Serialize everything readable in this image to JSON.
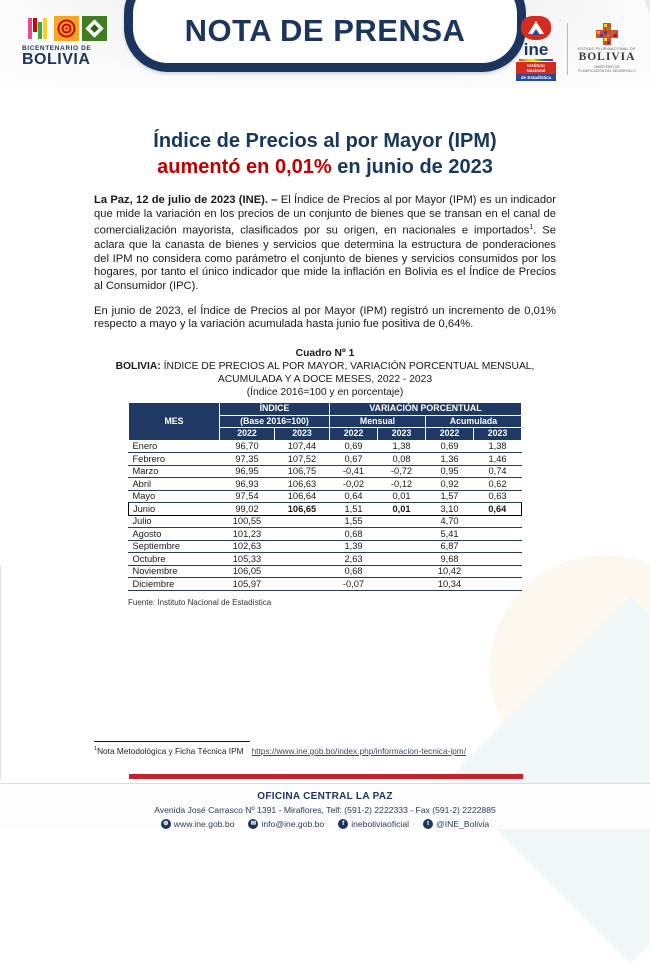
{
  "header": {
    "banner_title": "NOTA DE PRENSA",
    "bicentenario": {
      "line1": "BICENTENARIO DE",
      "line2": "BOLIVIA"
    },
    "ine_logo": {
      "word": "ine",
      "sub1": "Instituto Nacional",
      "sub2": "de Estadística"
    },
    "bolivia_logo": {
      "top": "ESTADO PLURINACIONAL DE",
      "name": "BOLIVIA",
      "sub1": "MINISTERIO DE",
      "sub2": "PLANIFICACIÓN DEL DESARROLLO"
    }
  },
  "title": {
    "line1": "Índice de Precios al por Mayor (IPM)",
    "line2_red": "aumentó en 0,01%",
    "line2_rest": " en junio de 2023"
  },
  "paragraphs": {
    "p1_lead": "La Paz, 12 de julio de 2023 (INE). –",
    "p1_before_sup": " El Índice de Precios al por Mayor (IPM) es un indicador que mide la variación en los precios de un conjunto de bienes que se transan en el canal de comercialización mayorista, clasificados por su origen, en nacionales e importados",
    "p1_sup": "1",
    "p1_after_sup": ".  Se aclara que la canasta de bienes y servicios que determina la estructura de ponderaciones del IPM no considera como parámetro el conjunto de bienes y servicios consumidos por los hogares, por tanto el único indicador que mide la inflación en Bolivia es el Índice de Precios al Consumidor (IPC).",
    "p2": "En junio de 2023, el Índice de Precios al por Mayor (IPM) registró un incremento de 0,01% respecto a mayo y la variación acumulada hasta junio fue positiva de 0,64%."
  },
  "table": {
    "caption_line1": "Cuadro Nº 1",
    "caption_bold": "BOLIVIA:",
    "caption_line2": " ÍNDICE DE PRECIOS AL POR MAYOR, VARIACIÓN PORCENTUAL MENSUAL, ACUMULADA Y A DOCE MESES, 2022 - 2023",
    "caption_line3": "(Índice 2016=100 y en porcentaje)",
    "head": {
      "mes": "MES",
      "group_indice": "ÍNDICE",
      "group_variacion": "VARIACIÓN PORCENTUAL",
      "sub_base": "(Base 2016=100)",
      "sub_mensual": "Mensual",
      "sub_acumulada": "Acumulada",
      "year1": "2022",
      "year2": "2023"
    },
    "rows": [
      {
        "mes": "Enero",
        "values": [
          "96,70",
          "107,44",
          "0,69",
          "1,38",
          "0,69",
          "1,38"
        ],
        "highlight": false
      },
      {
        "mes": "Febrero",
        "values": [
          "97,35",
          "107,52",
          "0,67",
          "0,08",
          "1,36",
          "1,46"
        ],
        "highlight": false
      },
      {
        "mes": "Marzo",
        "values": [
          "96,95",
          "106,75",
          "-0,41",
          "-0,72",
          "0,95",
          "0,74"
        ],
        "highlight": false
      },
      {
        "mes": "Abril",
        "values": [
          "96,93",
          "106,63",
          "-0,02",
          "-0,12",
          "0,92",
          "0,62"
        ],
        "highlight": false
      },
      {
        "mes": "Mayo",
        "values": [
          "97,54",
          "106,64",
          "0,64",
          "0,01",
          "1,57",
          "0,63"
        ],
        "highlight": false
      },
      {
        "mes": "Junio",
        "values": [
          "99,02",
          "106,65",
          "1,51",
          "0,01",
          "3,10",
          "0,64"
        ],
        "highlight": true,
        "bold_cols": [
          2,
          4,
          6
        ]
      },
      {
        "mes": "Julio",
        "values": [
          "100,55",
          "",
          "1,55",
          "",
          "4,70",
          ""
        ],
        "highlight": false
      },
      {
        "mes": "Agosto",
        "values": [
          "101,23",
          "",
          "0,68",
          "",
          "5,41",
          ""
        ],
        "highlight": false
      },
      {
        "mes": "Septiembre",
        "values": [
          "102,63",
          "",
          "1,39",
          "",
          "6,87",
          ""
        ],
        "highlight": false
      },
      {
        "mes": "Octubre",
        "values": [
          "105,33",
          "",
          "2,63",
          "",
          "9,68",
          ""
        ],
        "highlight": false
      },
      {
        "mes": "Noviembre",
        "values": [
          "106,05",
          "",
          "0,68",
          "",
          "10,42",
          ""
        ],
        "highlight": false
      },
      {
        "mes": "Diciembre",
        "values": [
          "105,97",
          "",
          "-0,07",
          "",
          "10,34",
          ""
        ],
        "highlight": false
      }
    ],
    "fuente": "Fuente: Instituto Nacional de Estadística"
  },
  "footnote": {
    "sup": "1",
    "text": "Nota Metodológica y Ficha Técnica IPM",
    "link": "https://www.ine.gob.bo/index.php/informacion-tecnica-ipm/"
  },
  "footer": {
    "title": "OFICINA CENTRAL LA PAZ",
    "address": "Avenida José Carrasco Nº 1391 - Miraflores, Telf: (591-2) 2222333 - Fax (591-2) 2222885",
    "links": [
      {
        "icon": "globe-icon",
        "glyph": "⊕",
        "label": "www.ine.gob.bo"
      },
      {
        "icon": "email-icon",
        "glyph": "✉",
        "label": "info@ine.gob.bo"
      },
      {
        "icon": "facebook-icon",
        "glyph": "f",
        "label": "ineboliviaoficial"
      },
      {
        "icon": "twitter-icon",
        "glyph": "t",
        "label": "@INE_Bolivia"
      }
    ]
  },
  "colors": {
    "navy": "#1b355e",
    "table_header_navy": "#1f3864",
    "title_red": "#c00000",
    "bar_red": "#c3222b",
    "ine_red": "#d52b1e"
  }
}
